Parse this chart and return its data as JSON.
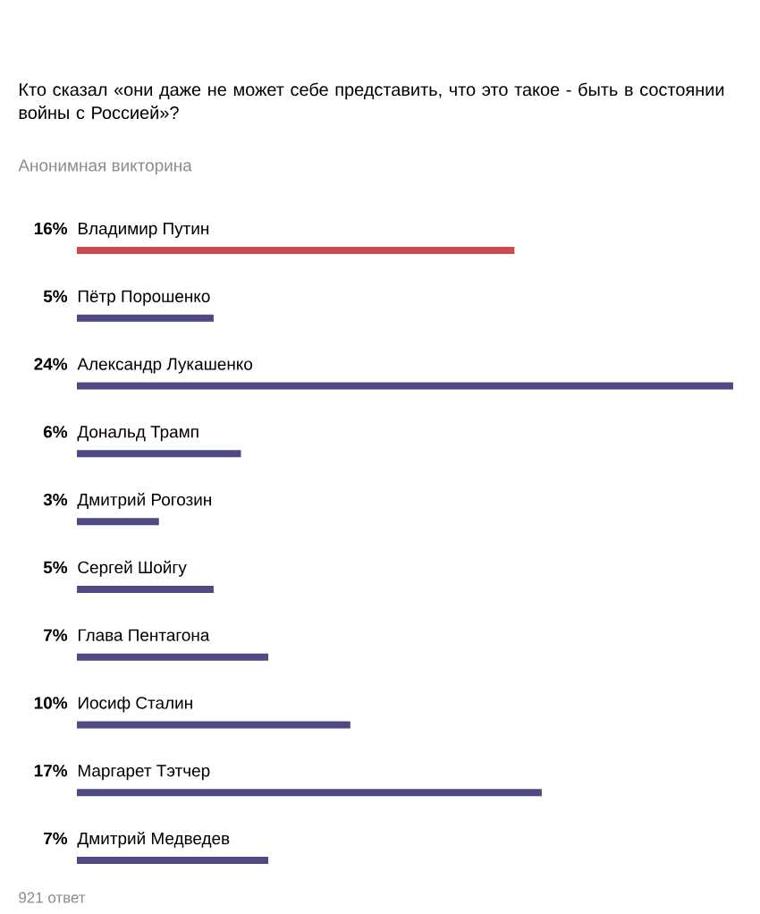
{
  "chart_data": {
    "type": "bar",
    "orientation": "horizontal",
    "title": "Кто сказал «они даже не может себе представить, что это такое - быть в состоянии войны с Россией»?",
    "subtitle": "Анонимная викторина",
    "categories": [
      "Владимир Путин",
      "Пётр Порошенко",
      "Александр Лукашенко",
      "Дональд Трамп",
      "Дмитрий Рогозин",
      "Сергей Шойгу",
      "Глава Пентагона",
      "Иосиф Сталин",
      "Маргарет Тэтчер",
      "Дмитрий Медведев"
    ],
    "values": [
      16,
      5,
      24,
      6,
      3,
      5,
      7,
      10,
      17,
      7
    ],
    "value_labels": [
      "16%",
      "5%",
      "24%",
      "6%",
      "3%",
      "5%",
      "7%",
      "10%",
      "17%",
      "7%"
    ],
    "colors": [
      "#c94d4d",
      "#4f4a84",
      "#4f4a84",
      "#4f4a84",
      "#4f4a84",
      "#4f4a84",
      "#4f4a84",
      "#4f4a84",
      "#4f4a84",
      "#4f4a84"
    ],
    "annotations": [
      "921 ответ"
    ]
  }
}
